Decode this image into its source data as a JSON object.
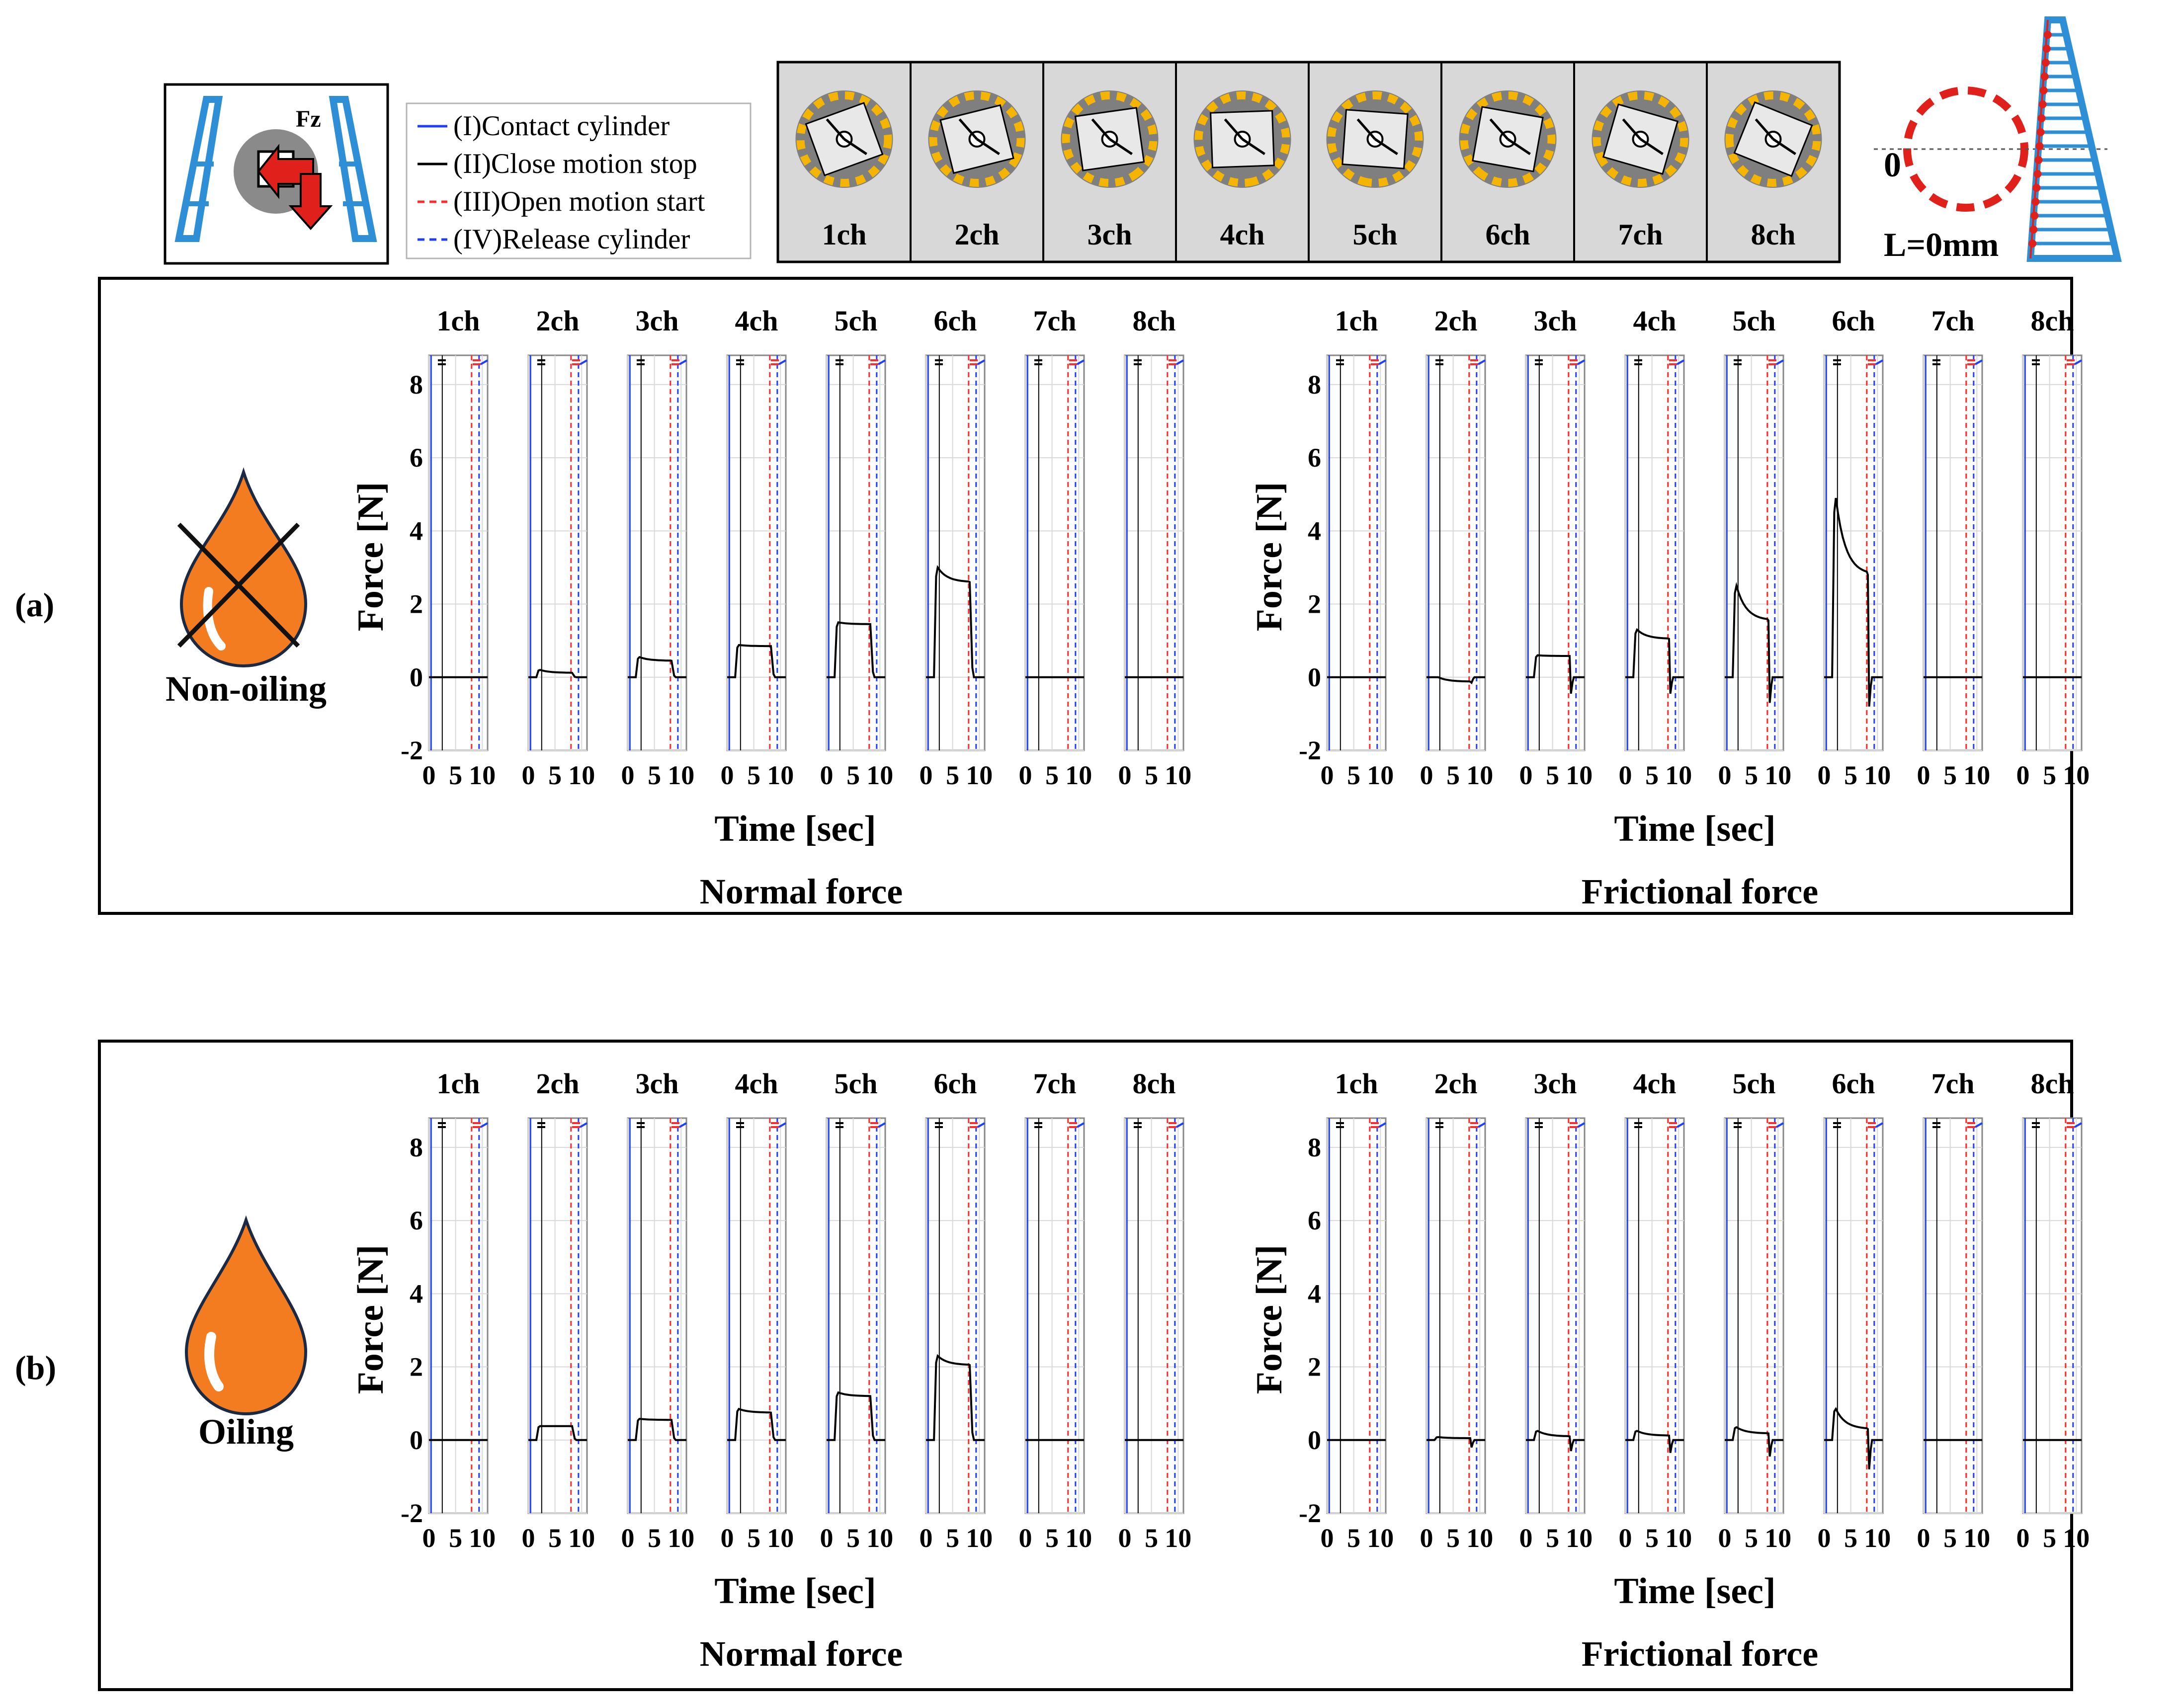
{
  "legend": {
    "items": [
      {
        "label": "(I)Contact cylinder",
        "color": "#1f3fff",
        "dash": "solid"
      },
      {
        "label": "(II)Close motion stop",
        "color": "#000000",
        "dash": "solid"
      },
      {
        "label": "(III)Open motion start",
        "color": "#ff2a2a",
        "dash": "dashed"
      },
      {
        "label": "(IV)Release cylinder",
        "color": "#1f3fff",
        "dash": "dashed"
      }
    ]
  },
  "gripper_icon": {
    "label": "Fz"
  },
  "sensor_strip": {
    "channels": [
      "1ch",
      "2ch",
      "3ch",
      "4ch",
      "5ch",
      "6ch",
      "7ch",
      "8ch"
    ]
  },
  "finger_diagram": {
    "zero_label": "0",
    "length_label": "L=0mm"
  },
  "colors": {
    "signal": "#000000",
    "contact": "#1f3fff",
    "open": "#ff2a2a",
    "release": "#1f3fff",
    "oil": "#f47c20",
    "grid": "#d9d9d9",
    "gray": "#bdbdbd"
  },
  "panels": [
    {
      "tag": "(a)",
      "condition_label": "Non-oiling",
      "crossed": true,
      "groups": [
        {
          "title": "Normal force",
          "ylabel": "Force [N]",
          "xlabel": "Time [sec]"
        },
        {
          "title": "Frictional force",
          "ylabel": "Force [N]",
          "xlabel": "Time [sec]"
        }
      ]
    },
    {
      "tag": "(b)",
      "condition_label": "Oiling",
      "crossed": false,
      "groups": [
        {
          "title": "Normal force",
          "ylabel": "Force [N]",
          "xlabel": "Time [sec]"
        },
        {
          "title": "Frictional force",
          "ylabel": "Force [N]",
          "xlabel": "Time [sec]"
        }
      ]
    }
  ],
  "chart_data": {
    "type": "line",
    "channels": [
      "1ch",
      "2ch",
      "3ch",
      "4ch",
      "5ch",
      "6ch",
      "7ch",
      "8ch"
    ],
    "xlim": [
      0,
      11
    ],
    "ylim": [
      -2,
      8.8
    ],
    "xticks": [
      0,
      5,
      10
    ],
    "yticks": [
      -2,
      0,
      2,
      4,
      6,
      8
    ],
    "event_lines": {
      "contact": 0.4,
      "close_stop": 2.5,
      "open_start": 8.0,
      "release": 9.4
    },
    "series": [
      {
        "panel": 0,
        "group": 0,
        "name": "Normal force (Non-oiling)",
        "plateau": [
          0,
          0.12,
          0.45,
          0.85,
          1.45,
          2.6,
          0,
          0
        ],
        "peak": [
          0,
          0.2,
          0.55,
          0.88,
          1.5,
          3.0,
          0,
          0
        ],
        "undershoot": [
          0,
          0,
          0,
          0,
          0,
          0,
          0,
          0
        ]
      },
      {
        "panel": 0,
        "group": 1,
        "name": "Frictional force (Non-oiling)",
        "plateau": [
          0,
          -0.12,
          0.58,
          1.05,
          1.55,
          2.8,
          0,
          0
        ],
        "peak": [
          0,
          0,
          0.6,
          1.3,
          2.5,
          4.9,
          0,
          0
        ],
        "undershoot": [
          0,
          -0.15,
          -0.45,
          -0.45,
          -0.7,
          -0.8,
          0,
          0
        ]
      },
      {
        "panel": 1,
        "group": 0,
        "name": "Normal force (Oiling)",
        "plateau": [
          0,
          0.38,
          0.55,
          0.75,
          1.2,
          2.05,
          0,
          0
        ],
        "peak": [
          0,
          0.38,
          0.58,
          0.85,
          1.3,
          2.3,
          0,
          0
        ],
        "undershoot": [
          0,
          0,
          0,
          0,
          0,
          0,
          0,
          0
        ]
      },
      {
        "panel": 1,
        "group": 1,
        "name": "Frictional force (Oiling)",
        "plateau": [
          0,
          0.05,
          0.1,
          0.12,
          0.18,
          0.3,
          0,
          0
        ],
        "peak": [
          0,
          0.08,
          0.25,
          0.25,
          0.35,
          0.85,
          0,
          0
        ],
        "undershoot": [
          0,
          -0.2,
          -0.3,
          -0.35,
          -0.45,
          -0.8,
          0,
          0
        ]
      }
    ]
  }
}
